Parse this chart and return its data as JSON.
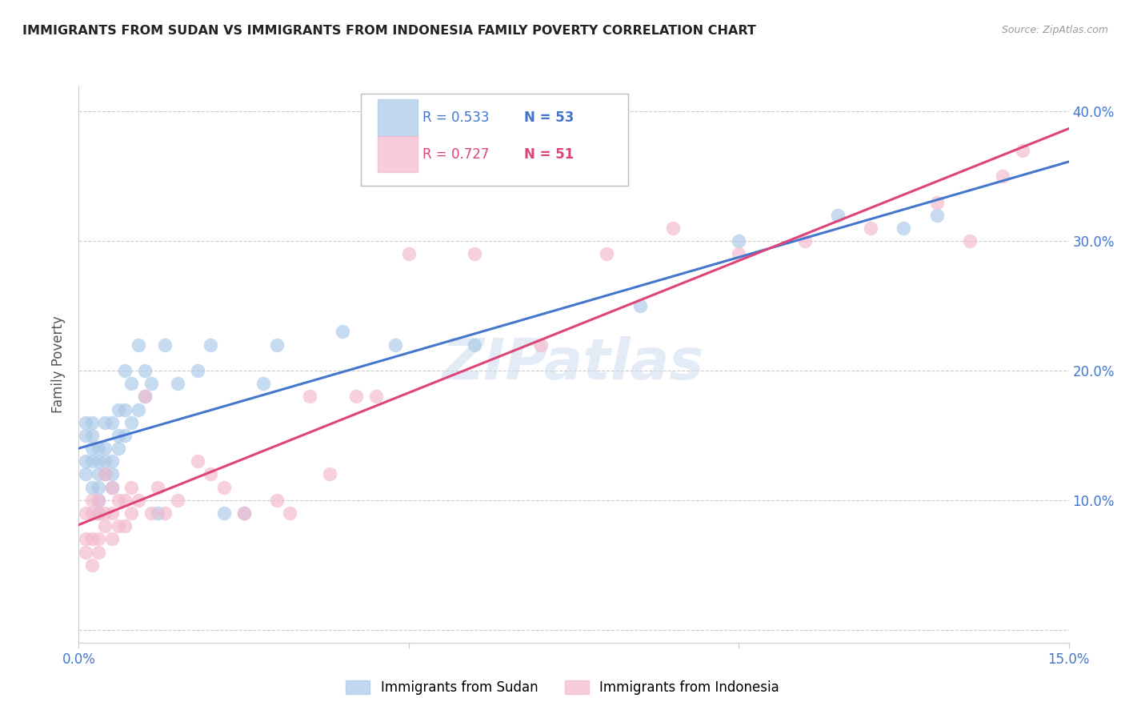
{
  "title": "IMMIGRANTS FROM SUDAN VS IMMIGRANTS FROM INDONESIA FAMILY POVERTY CORRELATION CHART",
  "source": "Source: ZipAtlas.com",
  "ylabel_label": "Family Poverty",
  "xlim": [
    0.0,
    0.15
  ],
  "ylim": [
    -0.01,
    0.42
  ],
  "xticks": [
    0.0,
    0.05,
    0.1,
    0.15
  ],
  "xtick_labels": [
    "0.0%",
    "",
    "",
    "15.0%"
  ],
  "yticks": [
    0.0,
    0.1,
    0.2,
    0.3,
    0.4
  ],
  "ytick_labels_right": [
    "",
    "10.0%",
    "20.0%",
    "30.0%",
    "40.0%"
  ],
  "sudan_color": "#a8c8e8",
  "indonesia_color": "#f4b8cc",
  "sudan_line_color": "#4477cc",
  "indonesia_line_color": "#dd4477",
  "sudan_R": 0.533,
  "sudan_N": 53,
  "indonesia_R": 0.727,
  "indonesia_N": 51,
  "watermark": "ZIPatlas",
  "sudan_x": [
    0.001,
    0.001,
    0.001,
    0.001,
    0.002,
    0.002,
    0.002,
    0.002,
    0.002,
    0.003,
    0.003,
    0.003,
    0.003,
    0.003,
    0.003,
    0.004,
    0.004,
    0.004,
    0.004,
    0.005,
    0.005,
    0.005,
    0.005,
    0.006,
    0.006,
    0.006,
    0.007,
    0.007,
    0.007,
    0.008,
    0.008,
    0.009,
    0.009,
    0.01,
    0.01,
    0.011,
    0.012,
    0.013,
    0.015,
    0.018,
    0.02,
    0.022,
    0.025,
    0.028,
    0.03,
    0.04,
    0.048,
    0.06,
    0.085,
    0.1,
    0.115,
    0.125,
    0.13
  ],
  "sudan_y": [
    0.12,
    0.13,
    0.15,
    0.16,
    0.11,
    0.13,
    0.14,
    0.15,
    0.16,
    0.09,
    0.1,
    0.11,
    0.12,
    0.13,
    0.14,
    0.12,
    0.13,
    0.14,
    0.16,
    0.11,
    0.12,
    0.13,
    0.16,
    0.14,
    0.15,
    0.17,
    0.15,
    0.17,
    0.2,
    0.16,
    0.19,
    0.17,
    0.22,
    0.18,
    0.2,
    0.19,
    0.09,
    0.22,
    0.19,
    0.2,
    0.22,
    0.09,
    0.09,
    0.19,
    0.22,
    0.23,
    0.22,
    0.22,
    0.25,
    0.3,
    0.32,
    0.31,
    0.32
  ],
  "indonesia_x": [
    0.001,
    0.001,
    0.001,
    0.002,
    0.002,
    0.002,
    0.002,
    0.003,
    0.003,
    0.003,
    0.003,
    0.004,
    0.004,
    0.004,
    0.005,
    0.005,
    0.005,
    0.006,
    0.006,
    0.007,
    0.007,
    0.008,
    0.008,
    0.009,
    0.01,
    0.011,
    0.012,
    0.013,
    0.015,
    0.018,
    0.02,
    0.022,
    0.025,
    0.03,
    0.032,
    0.035,
    0.038,
    0.042,
    0.045,
    0.05,
    0.06,
    0.07,
    0.08,
    0.09,
    0.1,
    0.11,
    0.12,
    0.13,
    0.135,
    0.14,
    0.143
  ],
  "indonesia_y": [
    0.06,
    0.07,
    0.09,
    0.05,
    0.07,
    0.09,
    0.1,
    0.06,
    0.07,
    0.09,
    0.1,
    0.08,
    0.09,
    0.12,
    0.07,
    0.09,
    0.11,
    0.08,
    0.1,
    0.08,
    0.1,
    0.09,
    0.11,
    0.1,
    0.18,
    0.09,
    0.11,
    0.09,
    0.1,
    0.13,
    0.12,
    0.11,
    0.09,
    0.1,
    0.09,
    0.18,
    0.12,
    0.18,
    0.18,
    0.29,
    0.29,
    0.22,
    0.29,
    0.31,
    0.29,
    0.3,
    0.31,
    0.33,
    0.3,
    0.35,
    0.37
  ],
  "legend_sudan_label": "Immigrants from Sudan",
  "legend_indonesia_label": "Immigrants from Indonesia"
}
